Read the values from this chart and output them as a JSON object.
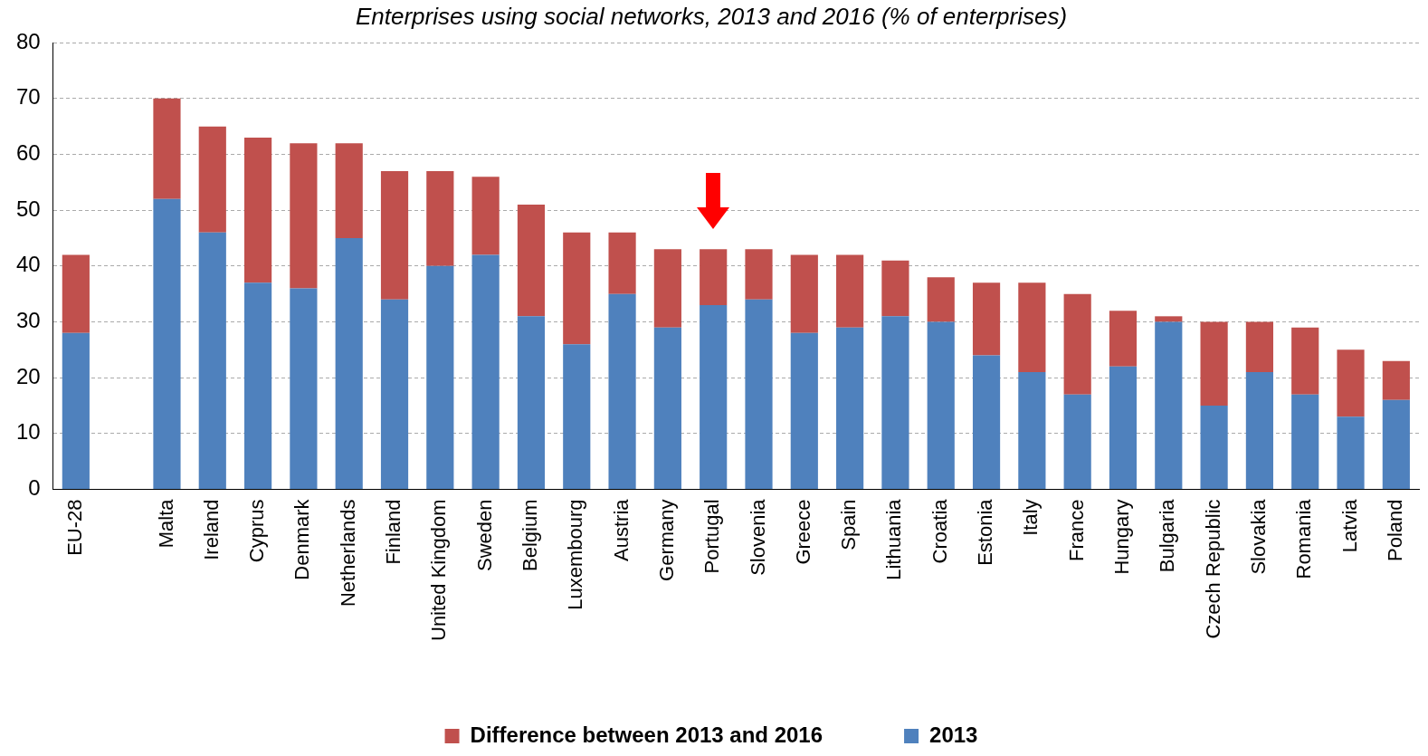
{
  "chart_data": {
    "type": "bar",
    "title": "Enterprises using social networks, 2013 and 2016 (% of enterprises)",
    "categories": [
      "EU-28",
      null,
      "Malta",
      "Ireland",
      "Cyprus",
      "Denmark",
      "Netherlands",
      "Finland",
      "United Kingdom",
      "Sweden",
      "Belgium",
      "Luxembourg",
      "Austria",
      "Germany",
      "Portugal",
      "Slovenia",
      "Greece",
      "Spain",
      "Lithuania",
      "Croatia",
      "Estonia",
      "Italy",
      "France",
      "Hungary",
      "Bulgaria",
      "Czech Republic",
      "Slovakia",
      "Romania",
      "Latvia",
      "Poland"
    ],
    "stacked": true,
    "series": [
      {
        "name": "2013",
        "color": "#4f81bd",
        "values": [
          28,
          null,
          52,
          46,
          37,
          36,
          45,
          34,
          40,
          42,
          31,
          26,
          35,
          29,
          33,
          34,
          28,
          29,
          31,
          30,
          24,
          21,
          17,
          22,
          30,
          15,
          21,
          17,
          13,
          16
        ]
      },
      {
        "name": "Difference between 2013 and 2016",
        "color": "#c0504d",
        "values": [
          14,
          null,
          18,
          19,
          26,
          26,
          17,
          23,
          17,
          14,
          20,
          20,
          11,
          14,
          10,
          9,
          14,
          13,
          10,
          8,
          13,
          16,
          18,
          10,
          1,
          15,
          9,
          12,
          12,
          7
        ]
      }
    ],
    "ylim": [
      0,
      80
    ],
    "yticks": [
      0,
      10,
      20,
      30,
      40,
      50,
      60,
      70,
      80
    ],
    "grid": "y",
    "legend": "bottom"
  }
}
